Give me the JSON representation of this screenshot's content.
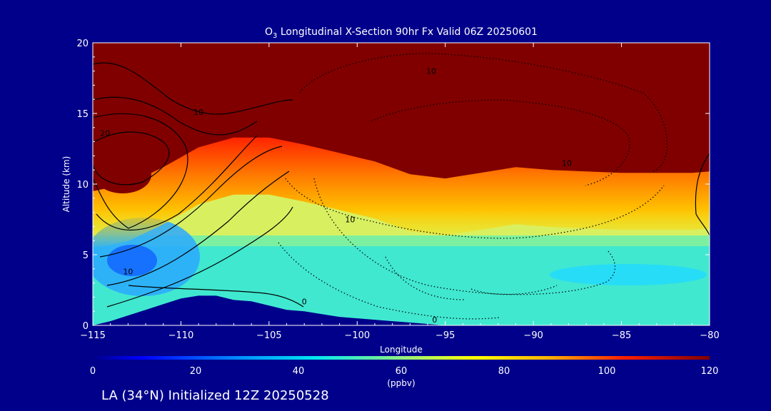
{
  "chart_data": {
    "type": "heatmap",
    "title_main": "O",
    "title_sub": "3",
    "title_rest": " Longitudinal X-Section 90hr  Fx Valid 06Z 20250601",
    "xlabel": "Longitude",
    "ylabel": "Altitude (km)",
    "xlim": [
      -115,
      -80
    ],
    "ylim": [
      0,
      20
    ],
    "xticks": [
      -115,
      -110,
      -105,
      -100,
      -95,
      -90,
      -85,
      -80
    ],
    "xtick_labels": [
      "−115",
      "−110",
      "−105",
      "−100",
      "−95",
      "−90",
      "−85",
      "−80"
    ],
    "yticks": [
      0,
      5,
      10,
      15,
      20
    ],
    "ytick_labels": [
      "0",
      "5",
      "10",
      "15",
      "20"
    ],
    "colorbar": {
      "range": [
        0,
        120
      ],
      "ticks": [
        0,
        20,
        40,
        60,
        80,
        100,
        120
      ],
      "tick_labels": [
        "0",
        "20",
        "40",
        "60",
        "80",
        "100",
        "120"
      ],
      "unit": "(ppbv)"
    },
    "tropopause_km": [
      [
        -115,
        9.5
      ],
      [
        -113,
        10.0
      ],
      [
        -111,
        11.2
      ],
      [
        -109,
        12.6
      ],
      [
        -107,
        13.3
      ],
      [
        -105,
        13.3
      ],
      [
        -103,
        12.8
      ],
      [
        -101,
        12.2
      ],
      [
        -99,
        11.6
      ],
      [
        -97,
        10.7
      ],
      [
        -95,
        10.4
      ],
      [
        -93,
        10.8
      ],
      [
        -91,
        11.2
      ],
      [
        -89,
        11.0
      ],
      [
        -87,
        10.9
      ],
      [
        -85,
        10.8
      ],
      [
        -83,
        10.8
      ],
      [
        -81,
        10.8
      ],
      [
        -80,
        10.9
      ]
    ],
    "terrain_km": [
      [
        -115,
        0.0
      ],
      [
        -114,
        0.3
      ],
      [
        -113,
        0.7
      ],
      [
        -112,
        1.1
      ],
      [
        -111,
        1.5
      ],
      [
        -110,
        1.9
      ],
      [
        -109,
        2.1
      ],
      [
        -108,
        2.1
      ],
      [
        -107,
        1.8
      ],
      [
        -106,
        1.7
      ],
      [
        -105,
        1.4
      ],
      [
        -104,
        1.1
      ],
      [
        -103,
        1.0
      ],
      [
        -102,
        0.8
      ],
      [
        -101,
        0.6
      ],
      [
        -100,
        0.5
      ],
      [
        -99,
        0.4
      ],
      [
        -98,
        0.3
      ],
      [
        -97,
        0.2
      ],
      [
        -96,
        0.1
      ],
      [
        -95,
        0.0
      ],
      [
        -90,
        0.0
      ],
      [
        -85,
        0.0
      ],
      [
        -80,
        0.0
      ]
    ],
    "contour_labels": [
      {
        "text": "10",
        "lon": -109.0,
        "alt": 14.9
      },
      {
        "text": "20",
        "lon": -114.3,
        "alt": 13.4
      },
      {
        "text": "10",
        "lon": -113.0,
        "alt": 3.6
      },
      {
        "text": "10",
        "lon": -95.8,
        "alt": 17.8
      },
      {
        "text": "10",
        "lon": -100.4,
        "alt": 7.3
      },
      {
        "text": "10",
        "lon": -88.1,
        "alt": 11.3
      },
      {
        "text": "0",
        "lon": -103.0,
        "alt": 1.5
      },
      {
        "text": "0",
        "lon": -95.6,
        "alt": 0.2
      }
    ]
  },
  "footer": {
    "location": "LA (34°N) Initialized 12Z 20250528"
  }
}
